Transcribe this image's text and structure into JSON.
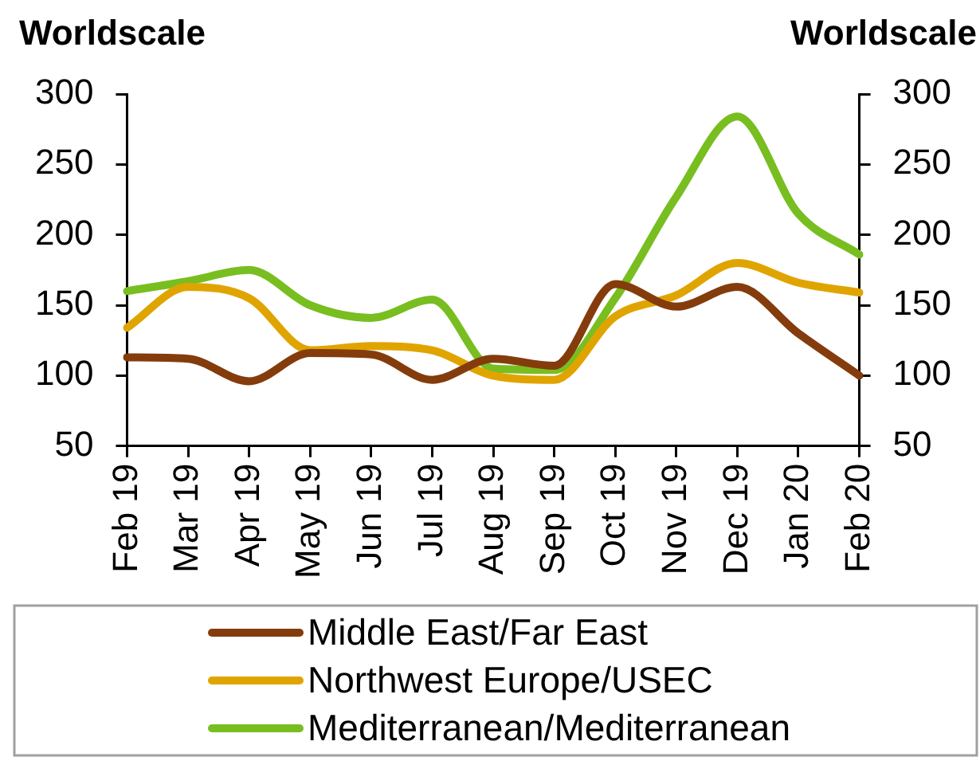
{
  "chart_data": {
    "type": "line",
    "ylabel": "Worldscale",
    "y2label": "Worldscale",
    "categories": [
      "Feb 19",
      "Mar 19",
      "Apr 19",
      "May 19",
      "Jun 19",
      "Jul 19",
      "Aug 19",
      "Sep 19",
      "Oct 19",
      "Nov 19",
      "Dec 19",
      "Jan 20",
      "Feb 20"
    ],
    "series": [
      {
        "name": "Middle East/Far East",
        "color": "#843c0c",
        "values": [
          113,
          112,
          96,
          116,
          115,
          97,
          112,
          107,
          165,
          149,
          163,
          130,
          100
        ]
      },
      {
        "name": "Northwest Europe/USEC",
        "color": "#e0a400",
        "values": [
          134,
          163,
          155,
          118,
          121,
          118,
          100,
          97,
          142,
          157,
          180,
          166,
          159
        ]
      },
      {
        "name": "Mediterranean/Mediterranean",
        "color": "#78be20",
        "values": [
          160,
          167,
          175,
          150,
          141,
          154,
          105,
          104,
          155,
          227,
          284,
          215,
          186
        ]
      }
    ],
    "ylim": [
      50,
      300
    ],
    "yticks": [
      50,
      100,
      150,
      200,
      250,
      300
    ],
    "y2lim": [
      50,
      300
    ],
    "y2ticks": [
      50,
      100,
      150,
      200,
      250,
      300
    ],
    "grid": false,
    "legend": "bottom",
    "marker": "none",
    "line_style": "solid"
  }
}
